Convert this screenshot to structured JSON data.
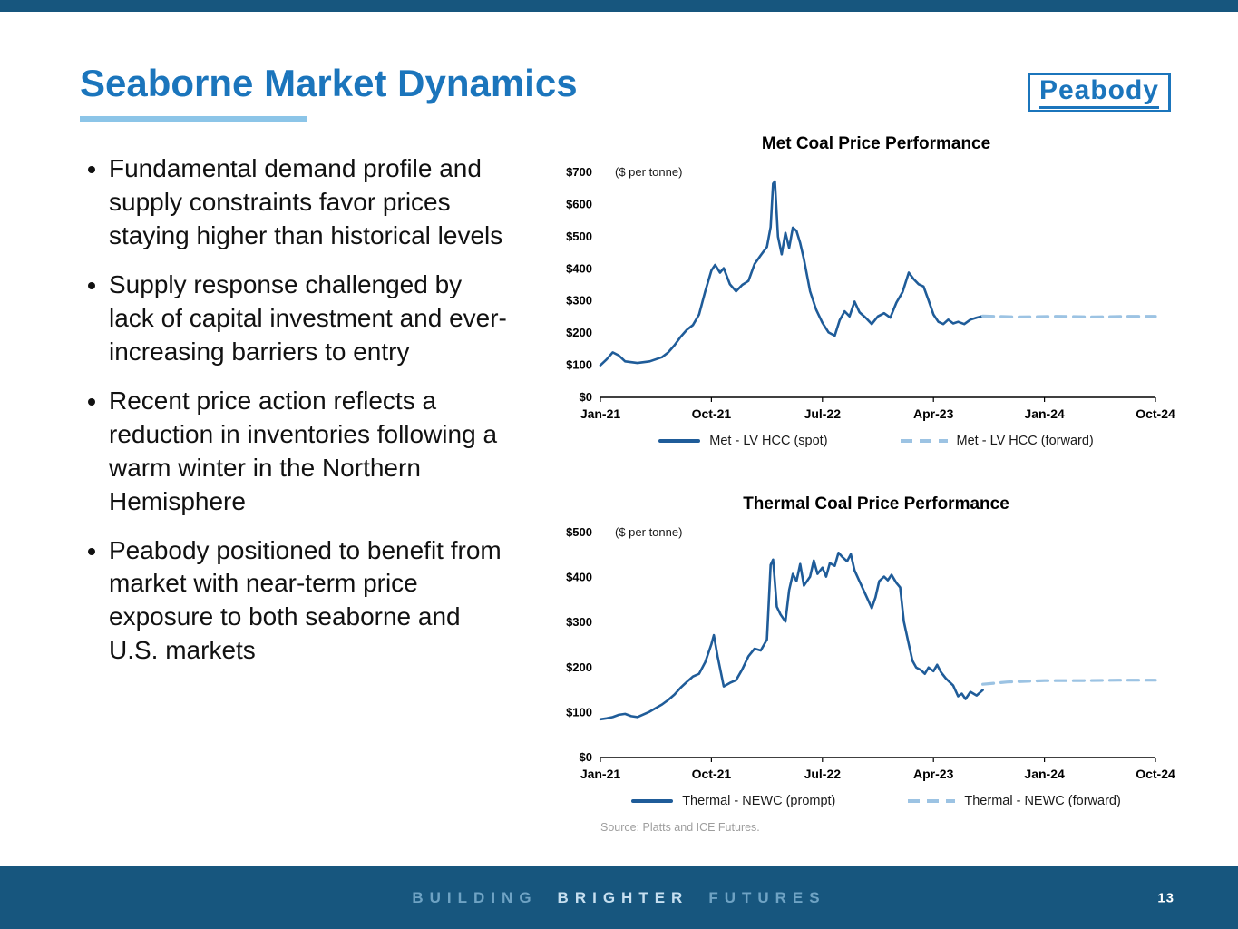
{
  "slide": {
    "title": "Seaborne Market Dynamics",
    "logo_text": "Peabody",
    "page_number": "13",
    "footer_words": [
      "BUILDING",
      "BRIGHTER",
      "FUTURES"
    ],
    "source_note": "Source: Platts and ICE Futures."
  },
  "bullets": [
    "Fundamental demand profile and supply constraints favor prices staying higher than historical levels",
    "Supply response challenged by lack of capital investment and ever-increasing barriers to entry",
    "Recent price action reflects a reduction in inventories following a warm winter in the Northern Hemisphere",
    "Peabody positioned to benefit from market with near-term price exposure to both seaborne and U.S. markets"
  ],
  "colors": {
    "accent_blue": "#1B75BC",
    "underline_blue": "#8CC5E8",
    "spot_line": "#1F5C99",
    "forward_line": "#9CC3E3",
    "footer_bg": "#17567E"
  },
  "chart_data": [
    {
      "type": "line",
      "title": "Met Coal Price Performance",
      "unit_label": "($ per tonne)",
      "xlim": [
        0,
        45
      ],
      "ylim": [
        0,
        700
      ],
      "ytick_step": 100,
      "ytick_labels": [
        "$0",
        "$100",
        "$200",
        "$300",
        "$400",
        "$500",
        "$600",
        "$700"
      ],
      "x_tick_positions": [
        0,
        9,
        18,
        27,
        36,
        45
      ],
      "x_tick_labels": [
        "Jan-21",
        "Oct-21",
        "Jul-22",
        "Apr-23",
        "Jan-24",
        "Oct-24"
      ],
      "grid": false,
      "legend_position": "bottom",
      "series": [
        {
          "name": "Met - LV HCC (spot)",
          "style": "solid",
          "color": "#1F5C99",
          "points": [
            [
              0,
              100
            ],
            [
              0.5,
              118
            ],
            [
              1,
              140
            ],
            [
              1.5,
              130
            ],
            [
              2,
              112
            ],
            [
              3,
              107
            ],
            [
              4,
              112
            ],
            [
              5,
              125
            ],
            [
              5.5,
              140
            ],
            [
              6,
              162
            ],
            [
              6.5,
              188
            ],
            [
              7,
              210
            ],
            [
              7.5,
              225
            ],
            [
              8,
              258
            ],
            [
              8.5,
              330
            ],
            [
              9,
              395
            ],
            [
              9.3,
              412
            ],
            [
              9.7,
              388
            ],
            [
              10,
              402
            ],
            [
              10.5,
              352
            ],
            [
              11,
              330
            ],
            [
              11.5,
              350
            ],
            [
              12,
              362
            ],
            [
              12.5,
              415
            ],
            [
              13,
              442
            ],
            [
              13.5,
              468
            ],
            [
              13.8,
              530
            ],
            [
              14,
              665
            ],
            [
              14.15,
              672
            ],
            [
              14.4,
              500
            ],
            [
              14.7,
              445
            ],
            [
              15,
              512
            ],
            [
              15.3,
              465
            ],
            [
              15.6,
              528
            ],
            [
              15.9,
              518
            ],
            [
              16.2,
              480
            ],
            [
              16.5,
              430
            ],
            [
              17,
              330
            ],
            [
              17.5,
              272
            ],
            [
              18,
              232
            ],
            [
              18.5,
              202
            ],
            [
              19,
              192
            ],
            [
              19.4,
              240
            ],
            [
              19.8,
              268
            ],
            [
              20.2,
              252
            ],
            [
              20.6,
              298
            ],
            [
              21,
              265
            ],
            [
              21.5,
              248
            ],
            [
              22,
              228
            ],
            [
              22.5,
              252
            ],
            [
              23,
              262
            ],
            [
              23.5,
              248
            ],
            [
              24,
              295
            ],
            [
              24.5,
              328
            ],
            [
              25,
              388
            ],
            [
              25.4,
              368
            ],
            [
              25.8,
              352
            ],
            [
              26.2,
              345
            ],
            [
              26.6,
              302
            ],
            [
              27,
              258
            ],
            [
              27.4,
              235
            ],
            [
              27.8,
              228
            ],
            [
              28.2,
              242
            ],
            [
              28.6,
              230
            ],
            [
              29,
              235
            ],
            [
              29.5,
              228
            ],
            [
              30,
              242
            ],
            [
              30.5,
              248
            ],
            [
              31,
              253
            ]
          ]
        },
        {
          "name": "Met - LV HCC (forward)",
          "style": "dashed",
          "color": "#9CC3E3",
          "points": [
            [
              31,
              253
            ],
            [
              34,
              250
            ],
            [
              37,
              252
            ],
            [
              40,
              250
            ],
            [
              43,
              252
            ],
            [
              45,
              252
            ]
          ]
        }
      ]
    },
    {
      "type": "line",
      "title": "Thermal Coal Price Performance",
      "unit_label": "($ per tonne)",
      "xlim": [
        0,
        45
      ],
      "ylim": [
        0,
        500
      ],
      "ytick_step": 100,
      "ytick_labels": [
        "$0",
        "$100",
        "$200",
        "$300",
        "$400",
        "$500"
      ],
      "x_tick_positions": [
        0,
        9,
        18,
        27,
        36,
        45
      ],
      "x_tick_labels": [
        "Jan-21",
        "Oct-21",
        "Jul-22",
        "Apr-23",
        "Jan-24",
        "Oct-24"
      ],
      "grid": false,
      "legend_position": "bottom",
      "series": [
        {
          "name": "Thermal - NEWC (prompt)",
          "style": "solid",
          "color": "#1F5C99",
          "points": [
            [
              0,
              85
            ],
            [
              0.5,
              87
            ],
            [
              1,
              90
            ],
            [
              1.5,
              95
            ],
            [
              2,
              97
            ],
            [
              2.5,
              92
            ],
            [
              3,
              90
            ],
            [
              3.5,
              96
            ],
            [
              4,
              102
            ],
            [
              4.5,
              110
            ],
            [
              5,
              118
            ],
            [
              5.5,
              128
            ],
            [
              6,
              140
            ],
            [
              6.5,
              155
            ],
            [
              7,
              168
            ],
            [
              7.5,
              180
            ],
            [
              8,
              186
            ],
            [
              8.5,
              212
            ],
            [
              9,
              252
            ],
            [
              9.2,
              272
            ],
            [
              9.5,
              225
            ],
            [
              10,
              158
            ],
            [
              10.5,
              166
            ],
            [
              11,
              172
            ],
            [
              11.5,
              196
            ],
            [
              12,
              225
            ],
            [
              12.5,
              242
            ],
            [
              13,
              238
            ],
            [
              13.5,
              262
            ],
            [
              13.8,
              428
            ],
            [
              14,
              440
            ],
            [
              14.3,
              335
            ],
            [
              14.6,
              318
            ],
            [
              15,
              302
            ],
            [
              15.3,
              372
            ],
            [
              15.6,
              408
            ],
            [
              15.9,
              392
            ],
            [
              16.2,
              430
            ],
            [
              16.5,
              382
            ],
            [
              17,
              402
            ],
            [
              17.3,
              438
            ],
            [
              17.6,
              408
            ],
            [
              18,
              422
            ],
            [
              18.3,
              402
            ],
            [
              18.6,
              432
            ],
            [
              19,
              426
            ],
            [
              19.3,
              455
            ],
            [
              19.6,
              446
            ],
            [
              20,
              436
            ],
            [
              20.3,
              452
            ],
            [
              20.6,
              416
            ],
            [
              21,
              392
            ],
            [
              21.5,
              362
            ],
            [
              22,
              332
            ],
            [
              22.3,
              356
            ],
            [
              22.6,
              392
            ],
            [
              23,
              402
            ],
            [
              23.3,
              394
            ],
            [
              23.6,
              406
            ],
            [
              24,
              388
            ],
            [
              24.3,
              378
            ],
            [
              24.6,
              302
            ],
            [
              25,
              252
            ],
            [
              25.3,
              215
            ],
            [
              25.6,
              200
            ],
            [
              26,
              194
            ],
            [
              26.3,
              186
            ],
            [
              26.6,
              200
            ],
            [
              27,
              192
            ],
            [
              27.3,
              206
            ],
            [
              27.6,
              190
            ],
            [
              28,
              176
            ],
            [
              28.3,
              168
            ],
            [
              28.6,
              160
            ],
            [
              29,
              136
            ],
            [
              29.3,
              142
            ],
            [
              29.6,
              130
            ],
            [
              30,
              146
            ],
            [
              30.5,
              138
            ],
            [
              31,
              150
            ]
          ]
        },
        {
          "name": "Thermal - NEWC  (forward)",
          "style": "dashed",
          "color": "#9CC3E3",
          "points": [
            [
              31,
              163
            ],
            [
              33,
              168
            ],
            [
              36,
              171
            ],
            [
              39,
              171
            ],
            [
              42,
              172
            ],
            [
              45,
              172
            ]
          ]
        }
      ]
    }
  ]
}
